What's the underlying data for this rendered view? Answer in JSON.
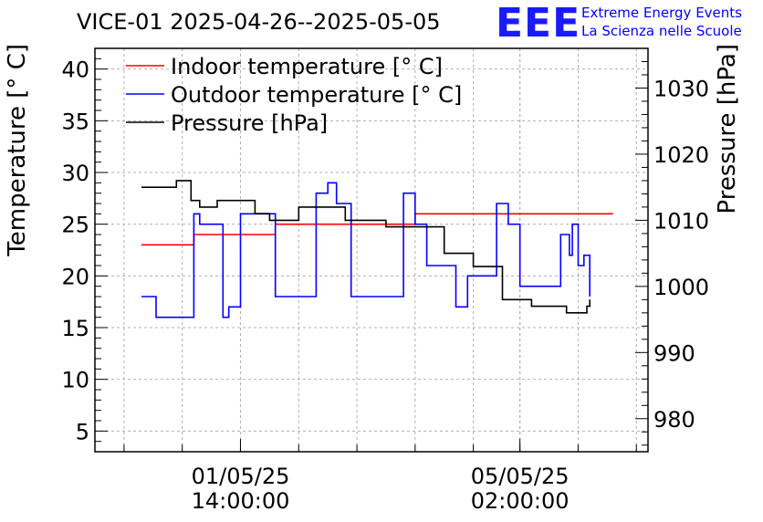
{
  "chart_data": {
    "type": "line",
    "title": "VICE-01 2025-04-26--2025-05-05",
    "brand": {
      "logo_text": "EEE",
      "line1": "Extreme Energy Events",
      "line2": "La Scienza nelle Scuole"
    },
    "ylabel": "Temperature [° C]",
    "y2label": "Pressure [hPa]",
    "ylim": [
      3,
      42
    ],
    "y2lim": [
      975,
      1036
    ],
    "xlim": [
      0,
      9.5
    ],
    "yticks": [
      5,
      10,
      15,
      20,
      25,
      30,
      35,
      40
    ],
    "y2ticks": [
      980,
      990,
      1000,
      1010,
      1020,
      1030
    ],
    "xticks": [
      {
        "value": 2.5,
        "label1": "01/05/25",
        "label2": "14:00:00"
      },
      {
        "value": 7.3,
        "label1": "05/05/25",
        "label2": "02:00:00"
      }
    ],
    "grid": true,
    "legend_position": "top-left",
    "colors": {
      "indoor": "#ff0000",
      "outdoor": "#0000ff",
      "pressure": "#000000"
    },
    "series": [
      {
        "name": "Indoor temperature [° C]",
        "axis": "left",
        "color": "#ff0000",
        "x": [
          0.8,
          1.5,
          1.7,
          1.9,
          3.1,
          4.4,
          5.5,
          8.9
        ],
        "y": [
          23,
          23,
          24,
          24,
          25,
          25,
          26,
          26
        ]
      },
      {
        "name": "Outdoor temperature [° C]",
        "axis": "left",
        "color": "#0000ff",
        "x": [
          0.8,
          0.95,
          1.05,
          1.2,
          1.7,
          1.8,
          2.2,
          2.3,
          2.5,
          3.1,
          3.35,
          3.8,
          4.0,
          4.15,
          4.4,
          4.9,
          5.3,
          5.5,
          5.7,
          6.2,
          6.4,
          6.9,
          7.1,
          7.3,
          7.7,
          8.0,
          8.15,
          8.2,
          8.3,
          8.4,
          8.5
        ],
        "y": [
          18,
          18,
          16,
          16,
          26,
          25,
          16,
          17,
          26,
          18,
          18,
          28,
          29,
          27,
          18,
          18,
          28,
          25,
          21,
          17,
          20,
          27,
          25,
          19,
          19,
          24,
          22,
          25,
          21,
          22,
          18
        ]
      },
      {
        "name": "Pressure [hPa]",
        "axis": "right",
        "color": "#000000",
        "x": [
          0.8,
          1.1,
          1.4,
          1.65,
          1.8,
          2.1,
          2.5,
          2.75,
          3.0,
          3.5,
          4.0,
          4.3,
          4.6,
          5.0,
          5.5,
          6.0,
          6.5,
          7.0,
          7.5,
          7.8,
          8.1,
          8.3,
          8.45,
          8.5
        ],
        "y": [
          1015,
          1015,
          1016,
          1013,
          1012,
          1013,
          1013,
          1011,
          1010,
          1012,
          1012,
          1010,
          1010,
          1009,
          1009,
          1005,
          1003,
          998,
          997,
          997,
          996,
          996,
          997,
          998
        ]
      }
    ]
  }
}
